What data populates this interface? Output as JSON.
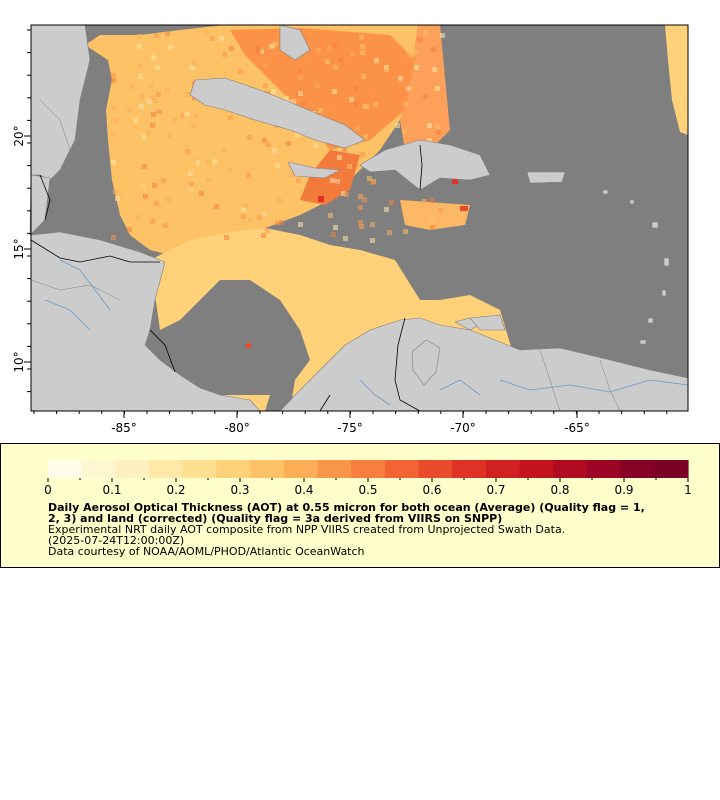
{
  "map": {
    "x_ticks": [
      "-85°",
      "-80°",
      "-75°",
      "-70°",
      "-65°"
    ],
    "y_ticks": [
      "20°",
      "15°",
      "10°"
    ],
    "colors": {
      "no_data": "#7f7f7f",
      "land": "#cccccc",
      "river": "#6699cc",
      "border": "#000000"
    }
  },
  "legend": {
    "ticks": [
      "0",
      "0.1",
      "0.2",
      "0.3",
      "0.4",
      "0.5",
      "0.6",
      "0.7",
      "0.8",
      "0.9",
      "1"
    ],
    "title_line1": "Daily Aerosol Optical Thickness (AOT) at 0.55 micron for both ocean (Average) (Quality flag = 1,",
    "title_line2": "2, 3) and land (corrected) (Quality flag = 3a derived from VIIRS on SNPP)",
    "desc_line1": "Experimental NRT daily AOT composite from NPP VIIRS created from Unprojected Swath Data.",
    "desc_line2": "(2025-07-24T12:00:00Z)",
    "desc_line3": "Data courtesy of NOAA/AOML/PHOD/Atlantic OceanWatch",
    "colors": [
      "#fffde8",
      "#fff6d2",
      "#fff0c0",
      "#ffe8a8",
      "#ffdf90",
      "#ffd27a",
      "#fdc266",
      "#fcae57",
      "#fa964a",
      "#f77e3e",
      "#f26433",
      "#ea4b2a",
      "#de3324",
      "#d02020",
      "#c2131f",
      "#b10b22",
      "#9c0626",
      "#860226",
      "#7a0026"
    ]
  }
}
